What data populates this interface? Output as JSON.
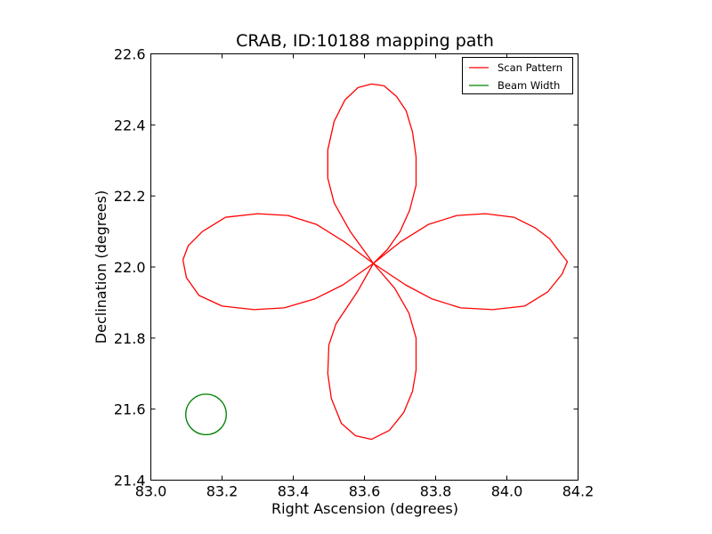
{
  "chart_data": {
    "type": "line",
    "title": "CRAB, ID:10188 mapping path",
    "xlabel": "Right Ascension (degrees)",
    "ylabel": "Declination (degrees)",
    "xlim": [
      83.0,
      84.2
    ],
    "ylim": [
      21.4,
      22.6
    ],
    "xticks": [
      "83.0",
      "83.2",
      "83.4",
      "83.6",
      "83.8",
      "84.0",
      "84.2"
    ],
    "yticks": [
      "21.4",
      "21.6",
      "21.8",
      "22.0",
      "22.2",
      "22.4",
      "22.6"
    ],
    "grid": false,
    "legend_position": "top-right",
    "series": [
      {
        "name": "Scan Pattern",
        "color": "#ff0000",
        "x": [
          83.625,
          83.56,
          83.515,
          83.497,
          83.497,
          83.515,
          83.545,
          83.582,
          83.62,
          83.655,
          83.69,
          83.717,
          83.735,
          83.745,
          83.745,
          83.727,
          83.7,
          83.665,
          83.625,
          83.7,
          83.78,
          83.86,
          83.94,
          84.02,
          84.08,
          84.12,
          84.15,
          84.17,
          84.155,
          84.115,
          84.05,
          83.96,
          83.87,
          83.79,
          83.715,
          83.625,
          83.685,
          83.725,
          83.745,
          83.745,
          83.735,
          83.71,
          83.67,
          83.62,
          83.575,
          83.535,
          83.507,
          83.497,
          83.5,
          83.52,
          83.55,
          83.58,
          83.625,
          83.545,
          83.465,
          83.385,
          83.3,
          83.21,
          83.145,
          83.105,
          83.09,
          83.1,
          83.135,
          83.2,
          83.29,
          83.375,
          83.46,
          83.54,
          83.625
        ],
        "y": [
          22.01,
          22.1,
          22.18,
          22.25,
          22.33,
          22.41,
          22.47,
          22.505,
          22.515,
          22.51,
          22.48,
          22.44,
          22.38,
          22.31,
          22.23,
          22.16,
          22.1,
          22.05,
          22.01,
          22.07,
          22.12,
          22.145,
          22.15,
          22.14,
          22.11,
          22.08,
          22.04,
          22.015,
          21.98,
          21.93,
          21.89,
          21.88,
          21.885,
          21.91,
          21.95,
          22.01,
          21.94,
          21.87,
          21.8,
          21.71,
          21.65,
          21.59,
          21.54,
          21.515,
          21.525,
          21.56,
          21.63,
          21.7,
          21.78,
          21.84,
          21.885,
          21.93,
          22.01,
          22.07,
          22.12,
          22.145,
          22.15,
          22.14,
          22.1,
          22.06,
          22.02,
          21.97,
          21.92,
          21.89,
          21.88,
          21.885,
          21.91,
          21.95,
          22.01
        ]
      },
      {
        "name": "Beam Width",
        "color": "#008000",
        "shape": "circle",
        "center": [
          83.155,
          21.585
        ],
        "radius_deg": 0.057
      }
    ]
  }
}
